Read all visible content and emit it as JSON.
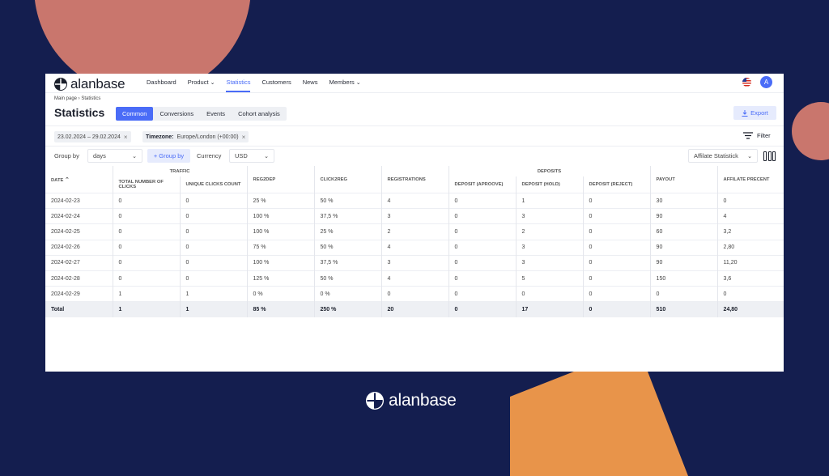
{
  "colors": {
    "accent": "#4a6cf7",
    "background": "#141e4f",
    "coral": "#c9766d",
    "orange": "#e8944a"
  },
  "brand": {
    "name": "alanbase"
  },
  "nav": {
    "items": [
      {
        "label": "Dashboard"
      },
      {
        "label": "Product"
      },
      {
        "label": "Statistics"
      },
      {
        "label": "Customers"
      },
      {
        "label": "News"
      },
      {
        "label": "Members"
      }
    ],
    "avatar": "A"
  },
  "header": {
    "breadcrumb": "Main page  ›  Statistics",
    "title": "Statistics",
    "tabs": [
      {
        "label": "Common"
      },
      {
        "label": "Conversions"
      },
      {
        "label": "Events"
      },
      {
        "label": "Cohort analysis"
      }
    ],
    "export_label": "Export"
  },
  "filters": {
    "date_range": "23.02.2024 – 29.02.2024",
    "timezone_label": "Timezone:",
    "timezone_value": "Europe/London (+00:00)",
    "filter_label": "Filter",
    "group_by_label": "Group by",
    "group_by_value": "days",
    "add_group_label": "+ Group by",
    "currency_label": "Currency",
    "currency_value": "USD",
    "statistick_value": "Affilate Statistick"
  },
  "table": {
    "group_traffic": "TRAFFIC",
    "group_deposits": "DEPOSITS",
    "headers": {
      "date": "DATE",
      "total_clicks": "TOTAL NUMBER OF CLICKS",
      "unique_clicks": "UNIQUE CLICKS COUNT",
      "reg2dep": "REG2DEP",
      "click2reg": "CLICK2REG",
      "registrations": "REGISTRATIONS",
      "dep_approve": "DEPOSIT (APROOVE)",
      "dep_hold": "DEPOSIT (HOLD)",
      "dep_reject": "DEPOSIT (REJECT)",
      "payout": "PAYOUT",
      "aff_percent": "AFFILATE PRECENT"
    },
    "rows": [
      [
        "2024-02-23",
        "0",
        "0",
        "25 %",
        "50 %",
        "4",
        "0",
        "1",
        "0",
        "30",
        "0"
      ],
      [
        "2024-02-24",
        "0",
        "0",
        "100 %",
        "37,5 %",
        "3",
        "0",
        "3",
        "0",
        "90",
        "4"
      ],
      [
        "2024-02-25",
        "0",
        "0",
        "100 %",
        "25 %",
        "2",
        "0",
        "2",
        "0",
        "60",
        "3,2"
      ],
      [
        "2024-02-26",
        "0",
        "0",
        "75 %",
        "50 %",
        "4",
        "0",
        "3",
        "0",
        "90",
        "2,80"
      ],
      [
        "2024-02-27",
        "0",
        "0",
        "100 %",
        "37,5 %",
        "3",
        "0",
        "3",
        "0",
        "90",
        "11,20"
      ],
      [
        "2024-02-28",
        "0",
        "0",
        "125 %",
        "50 %",
        "4",
        "0",
        "5",
        "0",
        "150",
        "3,6"
      ],
      [
        "2024-02-29",
        "1",
        "1",
        "0 %",
        "0 %",
        "0",
        "0",
        "0",
        "0",
        "0",
        "0"
      ]
    ],
    "total": [
      "Total",
      "1",
      "1",
      "85 %",
      "250 %",
      "20",
      "0",
      "17",
      "0",
      "510",
      "24,80"
    ]
  }
}
